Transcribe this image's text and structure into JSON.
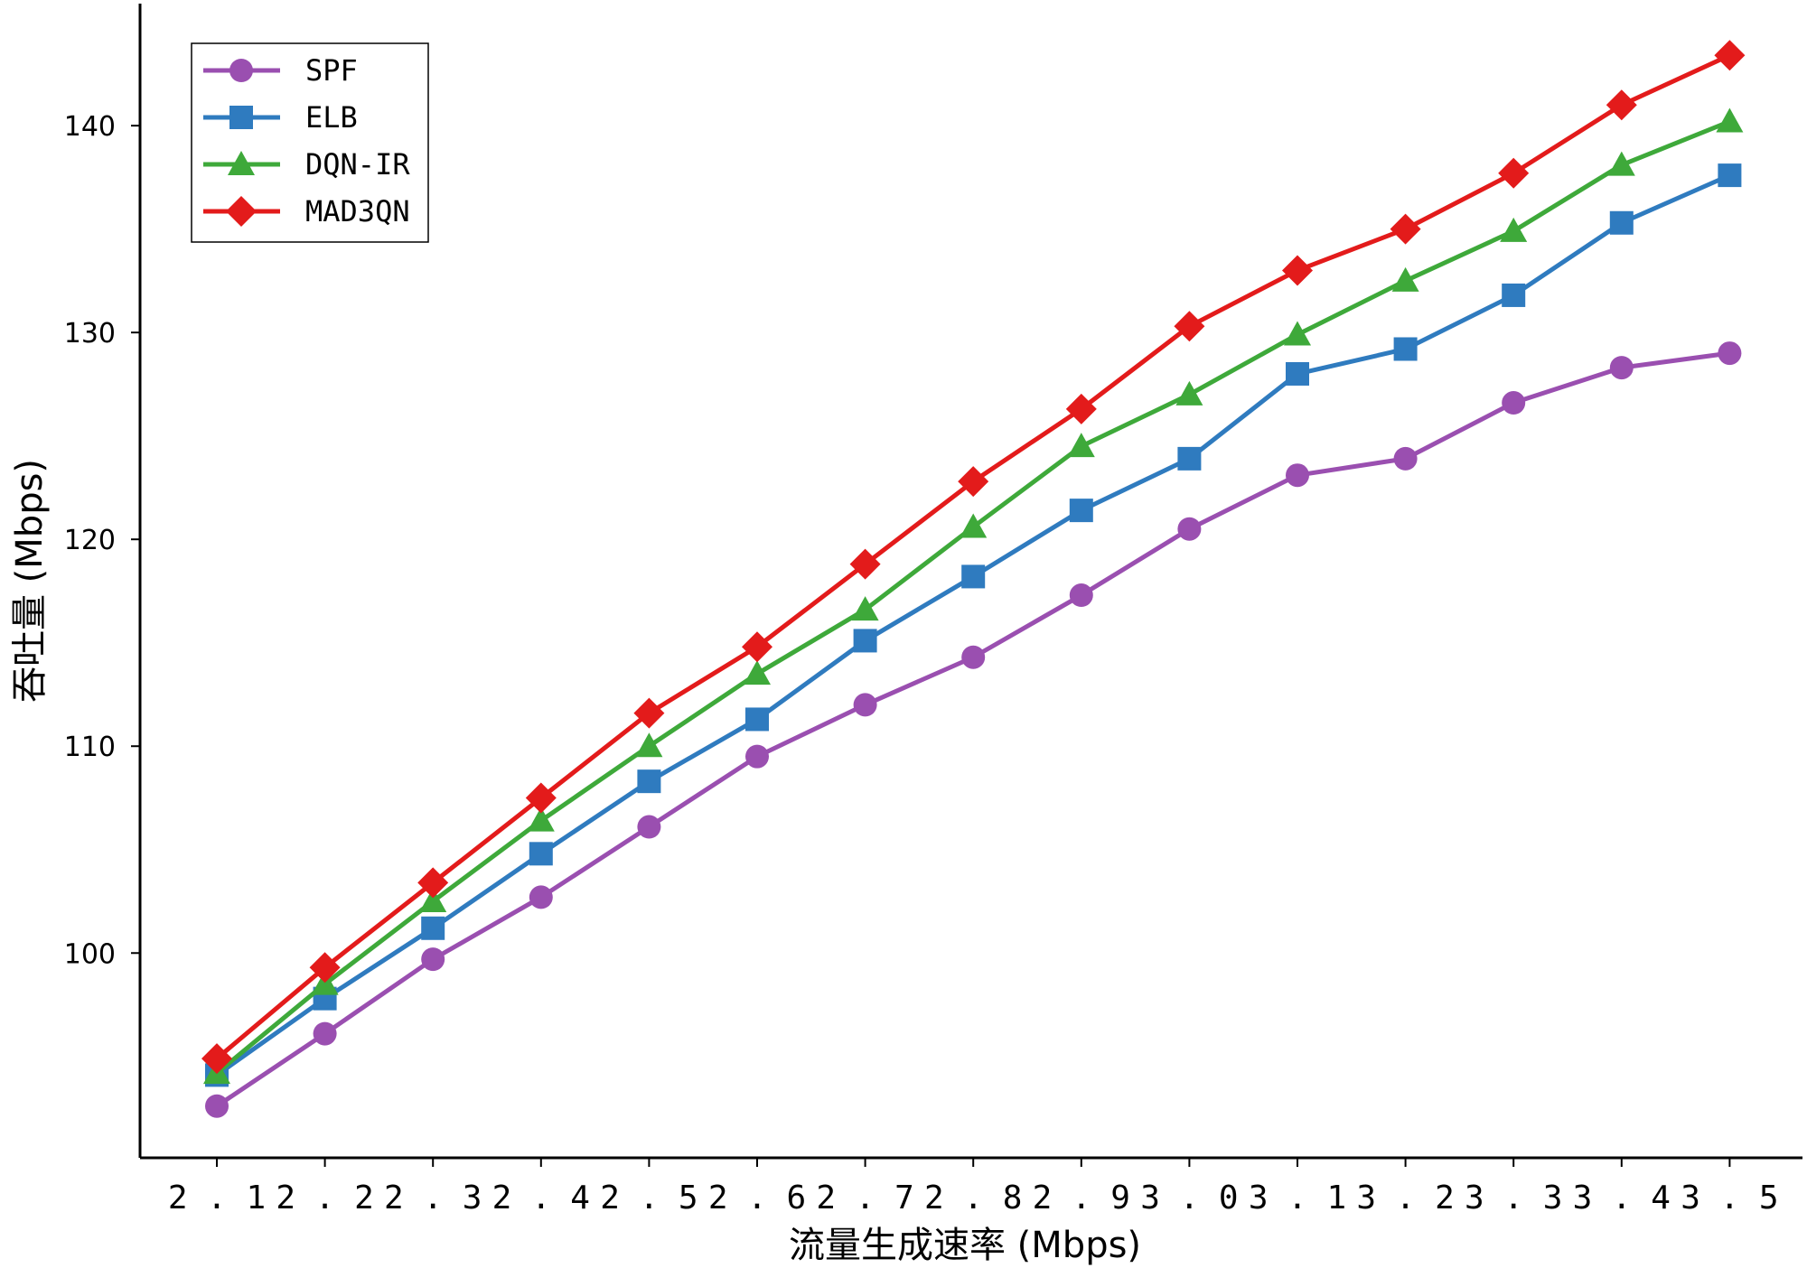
{
  "chart_data": {
    "type": "line",
    "xlabel": "流量生成速率 (Mbps)",
    "ylabel": "吞吐量 (Mbps)",
    "x": [
      "2.1",
      "2.2",
      "2.3",
      "2.4",
      "2.5",
      "2.6",
      "2.7",
      "2.8",
      "2.9",
      "3.0",
      "3.1",
      "3.2",
      "3.3",
      "3.4",
      "3.5"
    ],
    "y_ticks": [
      100,
      110,
      120,
      130,
      140
    ],
    "ylim": [
      90.1,
      145.9
    ],
    "grid": false,
    "legend_position": "top-left",
    "series": [
      {
        "name": "SPF",
        "color": "#9a4fb0",
        "marker": "circle",
        "values": [
          92.6,
          96.1,
          99.7,
          102.7,
          106.1,
          109.5,
          112.0,
          114.3,
          117.3,
          120.5,
          123.1,
          123.9,
          126.6,
          128.3,
          129.0
        ]
      },
      {
        "name": "ELB",
        "color": "#2f7bbf",
        "marker": "square",
        "values": [
          94.1,
          97.8,
          101.2,
          104.8,
          108.3,
          111.3,
          115.1,
          118.2,
          121.4,
          123.9,
          128.0,
          129.2,
          131.8,
          135.3,
          137.6
        ]
      },
      {
        "name": "DQN-IR",
        "color": "#3ea93a",
        "marker": "triangle",
        "values": [
          94.2,
          98.5,
          102.5,
          106.4,
          110.0,
          113.5,
          116.6,
          120.6,
          124.5,
          127.0,
          129.9,
          132.5,
          134.9,
          138.1,
          140.2
        ]
      },
      {
        "name": "MAD3QN",
        "color": "#e31b1b",
        "marker": "diamond",
        "values": [
          94.9,
          99.3,
          103.4,
          107.5,
          111.6,
          114.8,
          118.8,
          122.8,
          126.3,
          130.3,
          133.0,
          135.0,
          137.7,
          141.0,
          143.4
        ]
      }
    ]
  }
}
